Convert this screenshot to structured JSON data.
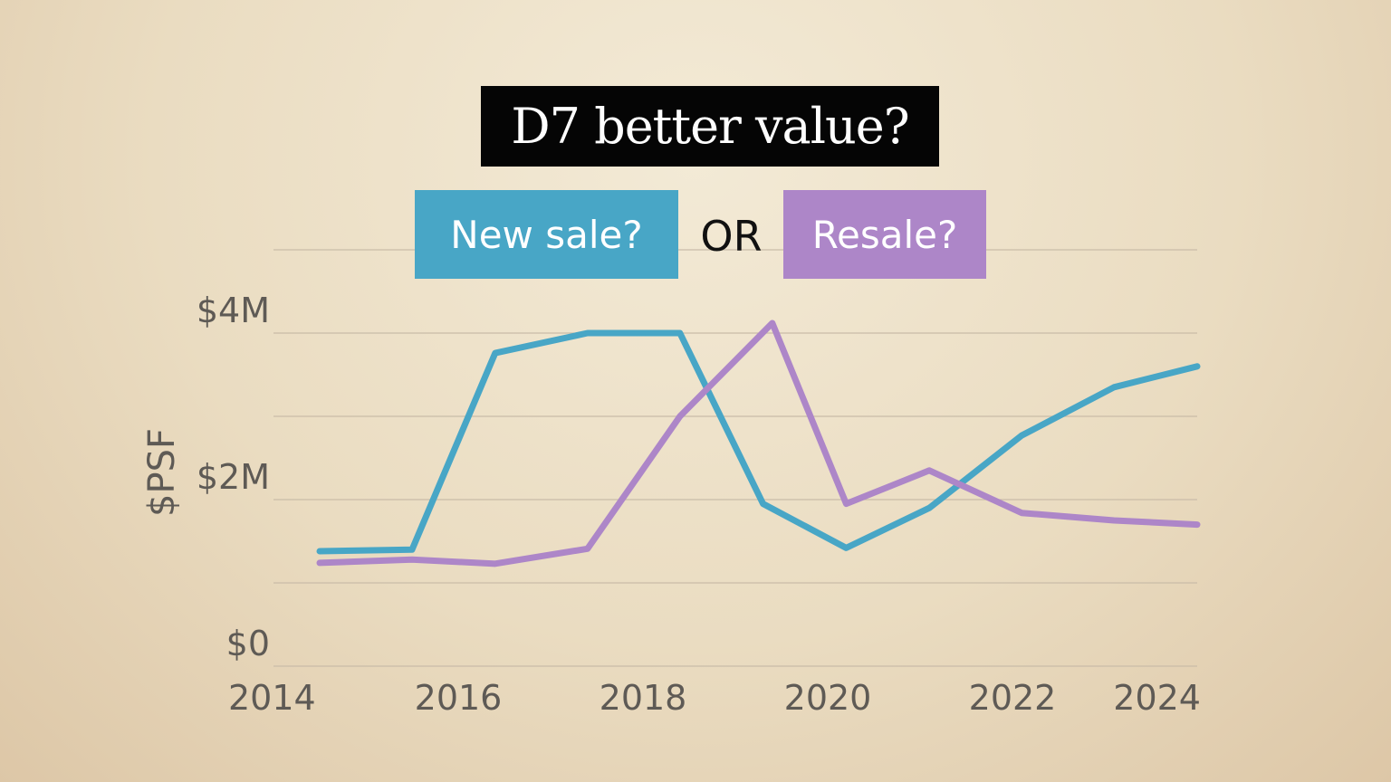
{
  "title": "D7 better value?",
  "connector": "OR",
  "colors": {
    "new_sale": "#48a6c6",
    "resale": "#ad86c8",
    "title_bg": "#050505",
    "grid": "#c9bca8",
    "tick": "#5e5a55"
  },
  "chart_data": {
    "type": "line",
    "title": "D7 better value?",
    "ylabel": "$PSF",
    "xlabel": "",
    "xlim": [
      2014,
      2024
    ],
    "ylim": [
      0,
      4
    ],
    "x_ticks": [
      2014,
      2016,
      2018,
      2020,
      2022,
      2024
    ],
    "x_tick_labels": [
      "2014",
      "2016",
      "2018",
      "2020",
      "2022",
      "2024"
    ],
    "y_ticks": [
      0,
      2,
      4
    ],
    "y_tick_labels": [
      "$0",
      "$2M",
      "$4M"
    ],
    "y_gridlines": [
      0,
      1,
      2,
      3,
      4,
      5
    ],
    "grid": true,
    "legend": "top-center",
    "series": [
      {
        "name": "New sale?",
        "color": "#48a6c6",
        "points": [
          [
            2014.5,
            1.38
          ],
          [
            2015.5,
            1.4
          ],
          [
            2016.4,
            3.76
          ],
          [
            2017.4,
            4.0
          ],
          [
            2018.4,
            4.0
          ],
          [
            2019.3,
            1.95
          ],
          [
            2020.2,
            1.42
          ],
          [
            2021.1,
            1.9
          ],
          [
            2022.1,
            2.77
          ],
          [
            2023.1,
            3.35
          ],
          [
            2024.0,
            3.6
          ]
        ]
      },
      {
        "name": "Resale?",
        "color": "#ad86c8",
        "points": [
          [
            2014.5,
            1.24
          ],
          [
            2015.5,
            1.28
          ],
          [
            2016.4,
            1.23
          ],
          [
            2017.4,
            1.41
          ],
          [
            2018.4,
            3.0
          ],
          [
            2019.4,
            4.12
          ],
          [
            2020.2,
            1.95
          ],
          [
            2021.1,
            2.35
          ],
          [
            2022.1,
            1.84
          ],
          [
            2023.1,
            1.75
          ],
          [
            2024.0,
            1.7
          ]
        ]
      }
    ]
  }
}
